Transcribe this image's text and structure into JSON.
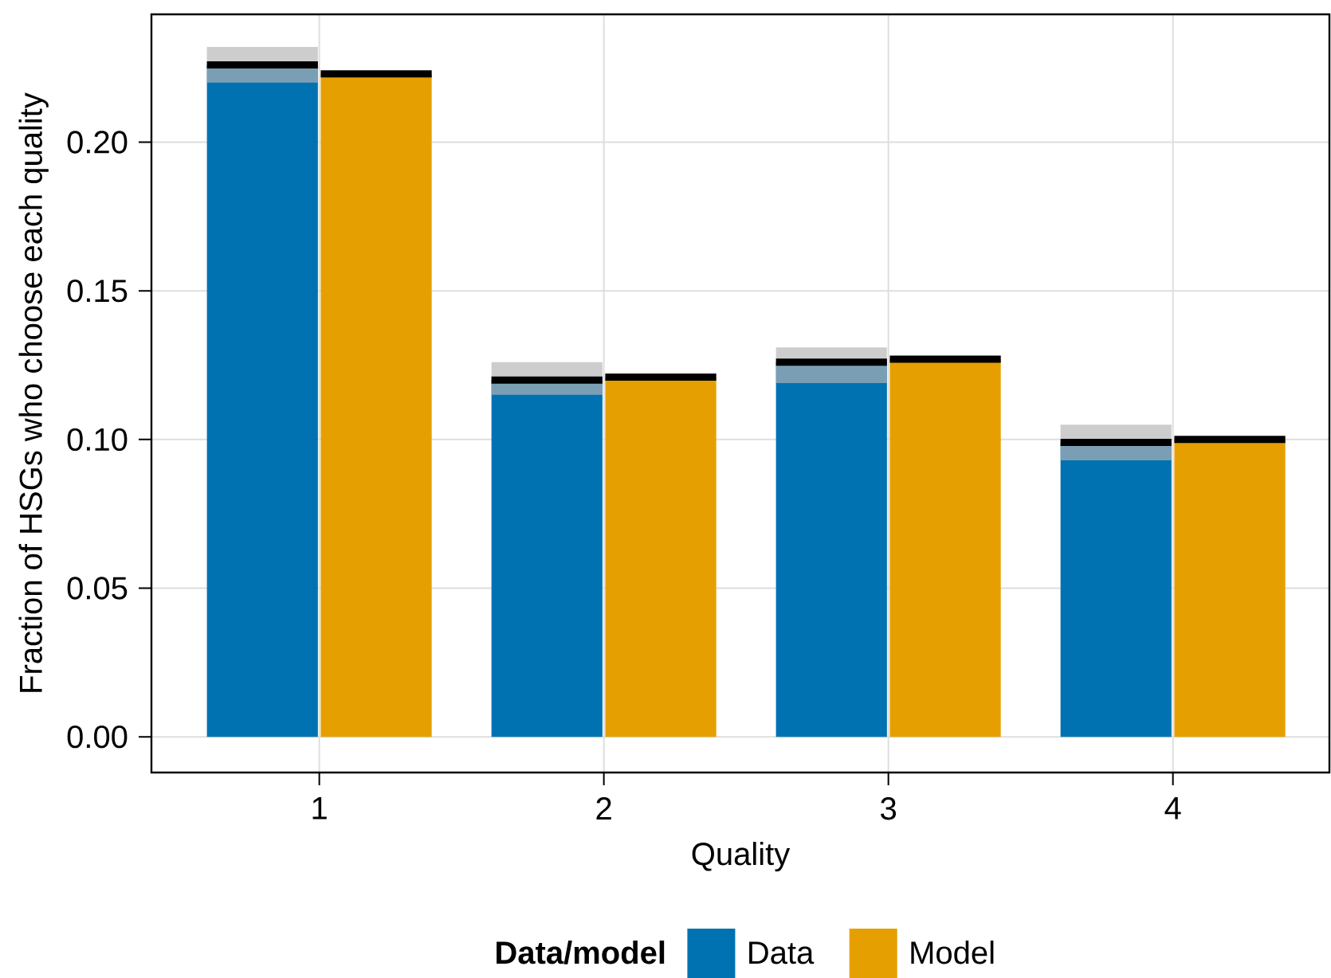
{
  "chart_data": {
    "type": "bar",
    "xlabel": "Quality",
    "ylabel": "Fraction of HSGs who choose each quality",
    "legend_title": "Data/model",
    "categories": [
      "1",
      "2",
      "3",
      "4"
    ],
    "series": [
      {
        "name": "Data",
        "color": "#0072b2",
        "values": [
          0.226,
          0.12,
          0.126,
          0.099
        ],
        "errors": [
          [
            0.22,
            0.232
          ],
          [
            0.115,
            0.126
          ],
          [
            0.119,
            0.131
          ],
          [
            0.093,
            0.105
          ]
        ]
      },
      {
        "name": "Model",
        "color": "#e69f00",
        "values": [
          0.223,
          0.121,
          0.127,
          0.1
        ]
      }
    ],
    "ylim": [
      -0.012,
      0.243
    ],
    "yticks": [
      {
        "value": 0,
        "label": "0.00"
      },
      {
        "value": 0.05,
        "label": "0.05"
      },
      {
        "value": 0.1,
        "label": "0.10"
      },
      {
        "value": 0.15,
        "label": "0.15"
      },
      {
        "value": 0.2,
        "label": "0.20"
      }
    ],
    "grid": true,
    "legend": "bottom"
  }
}
